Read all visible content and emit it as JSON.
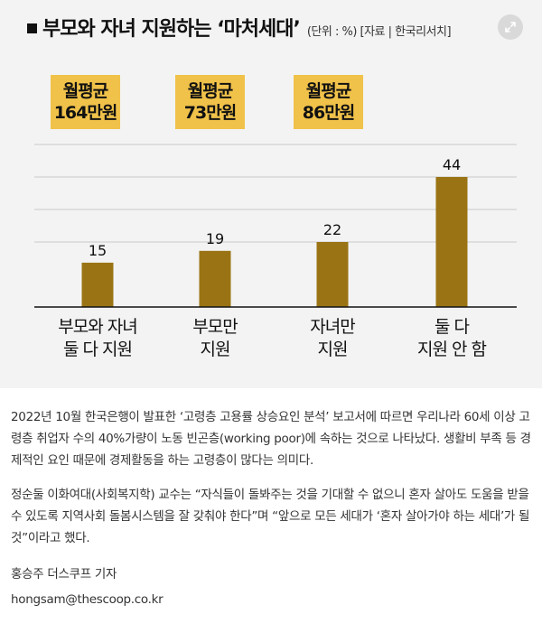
{
  "chart_data": {
    "type": "bar",
    "title": "부모와 자녀 지원하는 ‘마처세대’",
    "subtitle": "(단위 : %) [자료 | 한국리서치]",
    "categories": [
      {
        "line1": "부모와 자녀",
        "line2": "둘 다 지원"
      },
      {
        "line1": "부모만",
        "line2": "지원"
      },
      {
        "line1": "자녀만",
        "line2": "지원"
      },
      {
        "line1": "둘 다",
        "line2": "지원 안 함"
      }
    ],
    "values": [
      15,
      19,
      22,
      44
    ],
    "value_labels": [
      "15",
      "19",
      "22",
      "44"
    ],
    "ylim": [
      0,
      55
    ],
    "grid": true,
    "bar_color": "#9a7414",
    "averages": [
      {
        "line1": "월평균",
        "line2": "164만원"
      },
      {
        "line1": "월평균",
        "line2": "73만원"
      },
      {
        "line1": "월평균",
        "line2": "86만원"
      }
    ],
    "average_box_color": "#f0c24a"
  },
  "article": {
    "paragraph1": "2022년 10월 한국은행이 발표한 ‘고령층 고용률 상승요인 분석’ 보고서에 따르면 우리나라 60세 이상 고령층 취업자 수의 40%가량이 노동 빈곤층(working poor)에 속하는 것으로 나타났다. 생활비 부족 등 경제적인 요인 때문에 경제활동을 하는 고령층이 많다는 의미다.",
    "paragraph2": "정순둘 이화여대(사회복지학) 교수는 “자식들이 돌봐주는 것을 기대할 수 없으니 혼자 살아도 도움을 받을 수 있도록 지역사회 돌봄시스템을 잘 갖춰야 한다”며 “앞으로 모든 세대가 ‘혼자 살아가야 하는 세대’가 될 것”이라고 했다.",
    "author": "홍승주 더스쿠프 기자",
    "email": "hongsam@thescoop.co.kr"
  },
  "icons": {
    "expand": "expand-icon"
  }
}
